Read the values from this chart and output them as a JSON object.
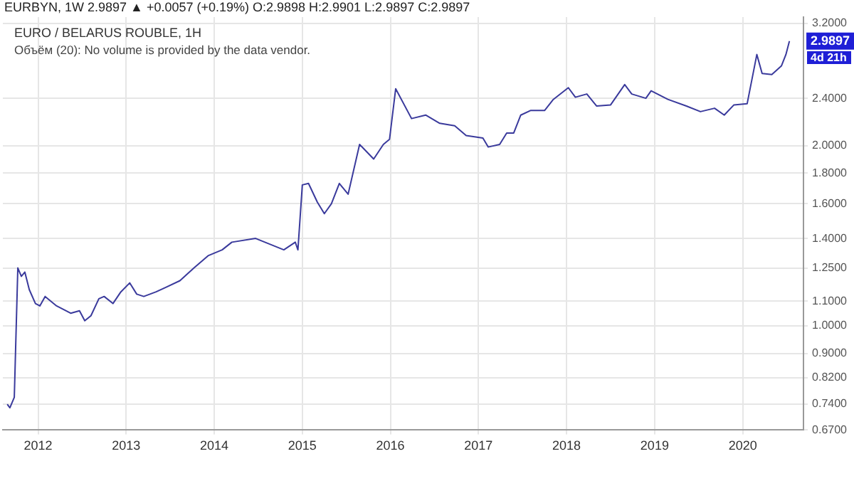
{
  "chart_data": {
    "type": "line",
    "title": "EURBYN, 1W 2.9897 ▲ +0.0057 (+0.19%) O:2.9898 H:2.9901 L:2.9897 C:2.9897",
    "subtitle": "EURO / BELARUS ROUBLE, 1H",
    "annotations": [
      "Объём (20): No volume is provided by the data vendor.",
      {
        "text": "2.9897",
        "y": 2.9897
      },
      "4d 21h"
    ],
    "x": [
      2011.65,
      2011.68,
      2011.73,
      2011.77,
      2011.81,
      2011.85,
      2011.9,
      2011.97,
      2012.02,
      2012.08,
      2012.21,
      2012.37,
      2012.47,
      2012.53,
      2012.6,
      2012.69,
      2012.75,
      2012.85,
      2012.94,
      2013.04,
      2013.12,
      2013.2,
      2013.34,
      2013.45,
      2013.61,
      2013.77,
      2013.93,
      2014.09,
      2014.2,
      2014.47,
      2014.68,
      2014.79,
      2014.92,
      2014.95,
      2015.0,
      2015.07,
      2015.17,
      2015.25,
      2015.33,
      2015.42,
      2015.52,
      2015.65,
      2015.81,
      2015.92,
      2015.99,
      2016.06,
      2016.24,
      2016.4,
      2016.56,
      2016.73,
      2016.86,
      2017.05,
      2017.11,
      2017.24,
      2017.32,
      2017.4,
      2017.48,
      2017.59,
      2017.75,
      2017.85,
      2018.02,
      2018.1,
      2018.23,
      2018.34,
      2018.5,
      2018.66,
      2018.74,
      2018.9,
      2018.96,
      2019.15,
      2019.36,
      2019.52,
      2019.68,
      2019.79,
      2019.9,
      2020.05,
      2020.16,
      2020.22,
      2020.33,
      2020.44,
      2020.49,
      2020.53
    ],
    "series": [
      {
        "color": "#3a3a9c",
        "values": [
          0.74,
          0.73,
          0.76,
          1.25,
          1.21,
          1.23,
          1.15,
          1.09,
          1.08,
          1.12,
          1.08,
          1.05,
          1.06,
          1.02,
          1.04,
          1.11,
          1.12,
          1.09,
          1.14,
          1.18,
          1.13,
          1.12,
          1.14,
          1.16,
          1.19,
          1.25,
          1.31,
          1.34,
          1.38,
          1.4,
          1.36,
          1.34,
          1.38,
          1.34,
          1.72,
          1.73,
          1.61,
          1.54,
          1.6,
          1.73,
          1.66,
          2.01,
          1.9,
          2.01,
          2.05,
          2.49,
          2.22,
          2.25,
          2.18,
          2.16,
          2.08,
          2.06,
          1.99,
          2.01,
          2.1,
          2.1,
          2.25,
          2.29,
          2.29,
          2.39,
          2.5,
          2.41,
          2.44,
          2.33,
          2.34,
          2.53,
          2.44,
          2.4,
          2.47,
          2.39,
          2.33,
          2.28,
          2.31,
          2.25,
          2.34,
          2.35,
          2.84,
          2.64,
          2.63,
          2.72,
          2.84,
          2.9897
        ]
      }
    ],
    "xlim": [
      2011.6,
      2020.69
    ],
    "xticks": [
      2012,
      2013,
      2014,
      2015,
      2016,
      2017,
      2018,
      2019,
      2020
    ],
    "ylim": [
      0.67,
      3.28
    ],
    "yticks": [
      {
        "value": 0.67,
        "label": "0.6700"
      },
      {
        "value": 0.74,
        "label": "0.7400"
      },
      {
        "value": 0.82,
        "label": "0.8200"
      },
      {
        "value": 0.9,
        "label": "0.9000"
      },
      {
        "value": 1.0,
        "label": "1.0000"
      },
      {
        "value": 1.1,
        "label": "1.1000"
      },
      {
        "value": 1.25,
        "label": "1.2500"
      },
      {
        "value": 1.4,
        "label": "1.4000"
      },
      {
        "value": 1.6,
        "label": "1.6000"
      },
      {
        "value": 1.8,
        "label": "1.8000"
      },
      {
        "value": 2.0,
        "label": "2.0000"
      },
      {
        "value": 2.4,
        "label": "2.4000"
      },
      {
        "value": 3.2,
        "label": "3.2000"
      }
    ],
    "log": "y",
    "grid": true,
    "legend": false,
    "marker": "none",
    "line_style": "solid"
  }
}
